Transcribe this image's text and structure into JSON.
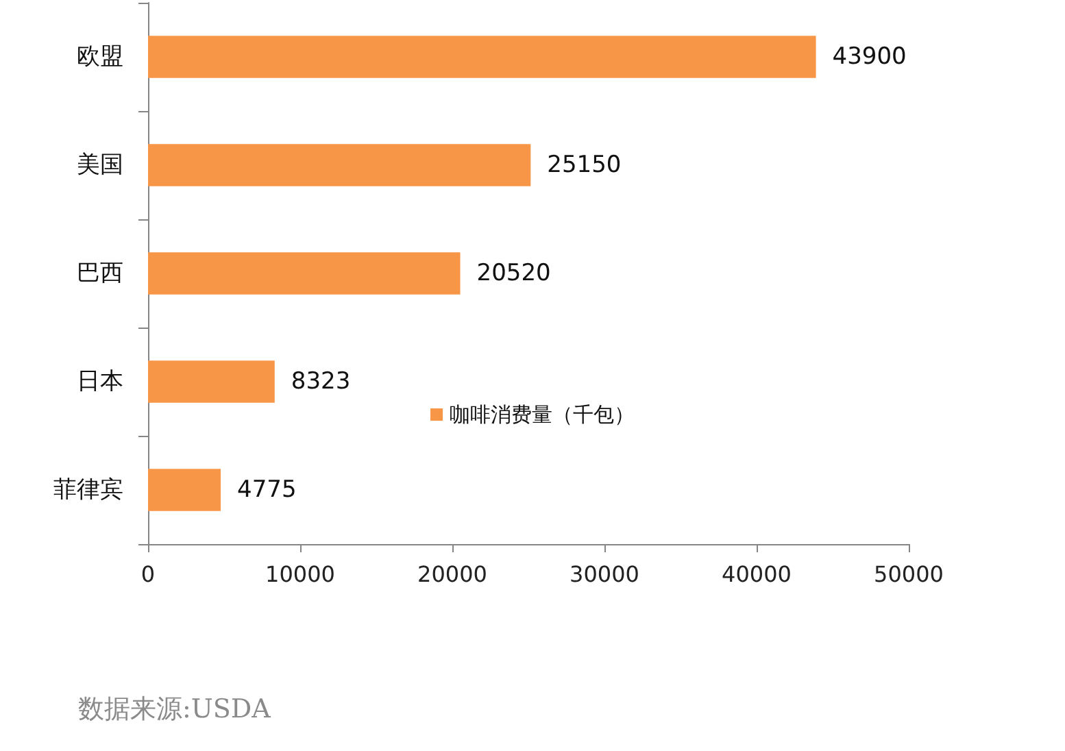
{
  "chart_data": {
    "type": "bar",
    "orientation": "horizontal",
    "categories": [
      "欧盟",
      "美国",
      "巴西",
      "日本",
      "菲律宾"
    ],
    "series": [
      {
        "name": "咖啡消费量（千包）",
        "color": "#f79646",
        "values": [
          43900,
          25150,
          20520,
          8323,
          4775
        ]
      }
    ],
    "xlim": [
      0,
      50000
    ],
    "xticks": [
      0,
      10000,
      20000,
      30000,
      40000,
      50000
    ],
    "data_labels": true,
    "legend": "bottom",
    "annotations": [
      "数据来源:USDA"
    ]
  }
}
